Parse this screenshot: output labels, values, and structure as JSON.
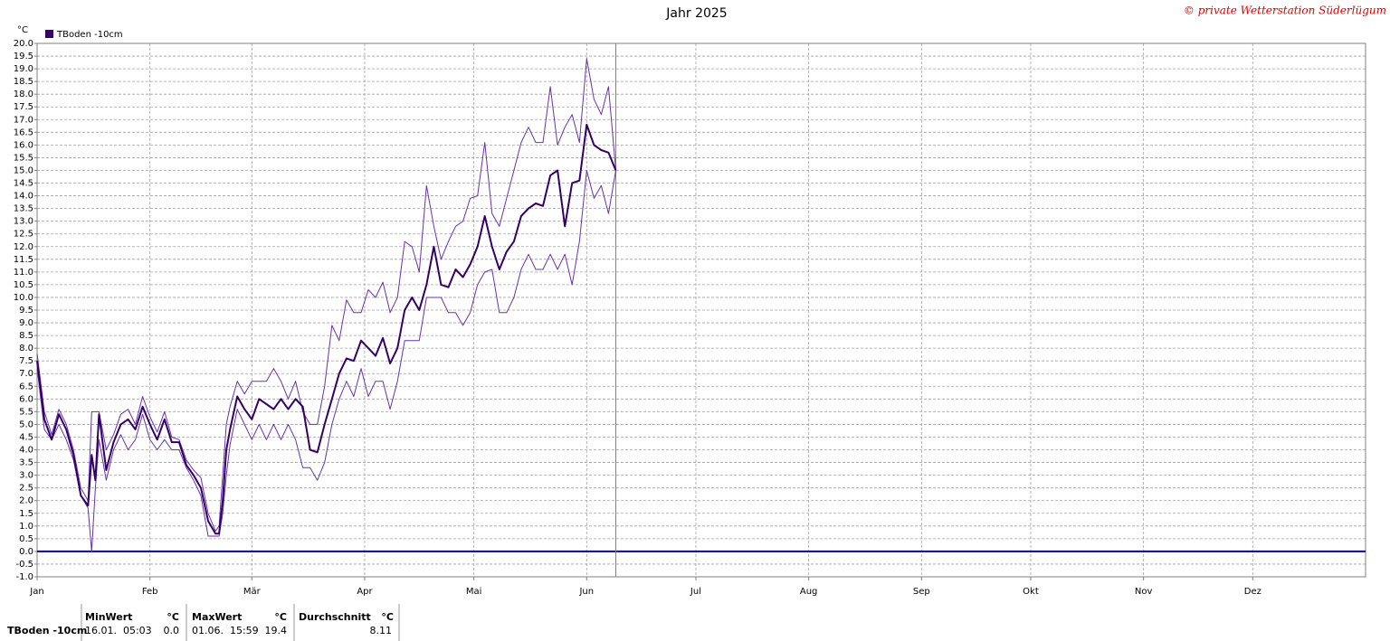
{
  "chart_data": {
    "type": "line",
    "title": "Jahr 2025",
    "credit": "© private Wetterstation Süderlügum",
    "y_unit": "°C",
    "legend": {
      "label": "TBoden -10cm",
      "color": "#330066"
    },
    "grid": true,
    "zero_line": {
      "value": 0,
      "color": "#0000cc"
    },
    "xlim": [
      0,
      365
    ],
    "xticks": [
      {
        "value": 0,
        "label": "Jan"
      },
      {
        "value": 31,
        "label": "Feb"
      },
      {
        "value": 59,
        "label": "Mär"
      },
      {
        "value": 90,
        "label": "Apr"
      },
      {
        "value": 120,
        "label": "Mai"
      },
      {
        "value": 151,
        "label": "Jun"
      },
      {
        "value": 181,
        "label": "Jul"
      },
      {
        "value": 212,
        "label": "Aug"
      },
      {
        "value": 243,
        "label": "Sep"
      },
      {
        "value": 273,
        "label": "Okt"
      },
      {
        "value": 304,
        "label": "Nov"
      },
      {
        "value": 334,
        "label": "Dez"
      }
    ],
    "ylim": [
      -1,
      20
    ],
    "yticks": [
      {
        "value": -1,
        "label": "-1.0"
      },
      {
        "value": -0.5,
        "label": "-0.5"
      },
      {
        "value": 0,
        "label": "0.0"
      },
      {
        "value": 0.5,
        "label": "0.5"
      },
      {
        "value": 1,
        "label": "1.0"
      },
      {
        "value": 1.5,
        "label": "1.5"
      },
      {
        "value": 2,
        "label": "2.0"
      },
      {
        "value": 2.5,
        "label": "2.5"
      },
      {
        "value": 3,
        "label": "3.0"
      },
      {
        "value": 3.5,
        "label": "3.5"
      },
      {
        "value": 4,
        "label": "4.0"
      },
      {
        "value": 4.5,
        "label": "4.5"
      },
      {
        "value": 5,
        "label": "5.0"
      },
      {
        "value": 5.5,
        "label": "5.5"
      },
      {
        "value": 6,
        "label": "6.0"
      },
      {
        "value": 6.5,
        "label": "6.5"
      },
      {
        "value": 7,
        "label": "7.0"
      },
      {
        "value": 7.5,
        "label": "7.5"
      },
      {
        "value": 8,
        "label": "8.0"
      },
      {
        "value": 8.5,
        "label": "8.5"
      },
      {
        "value": 9,
        "label": "9.0"
      },
      {
        "value": 9.5,
        "label": "9.5"
      },
      {
        "value": 10,
        "label": "10.0"
      },
      {
        "value": 10.5,
        "label": "10.5"
      },
      {
        "value": 11,
        "label": "11.0"
      },
      {
        "value": 11.5,
        "label": "11.5"
      },
      {
        "value": 12,
        "label": "12.0"
      },
      {
        "value": 12.5,
        "label": "12.5"
      },
      {
        "value": 13,
        "label": "13.0"
      },
      {
        "value": 13.5,
        "label": "13.5"
      },
      {
        "value": 14,
        "label": "14.0"
      },
      {
        "value": 14.5,
        "label": "14.5"
      },
      {
        "value": 15,
        "label": "15.0"
      },
      {
        "value": 15.5,
        "label": "15.5"
      },
      {
        "value": 16,
        "label": "16.0"
      },
      {
        "value": 16.5,
        "label": "16.5"
      },
      {
        "value": 17,
        "label": "17.0"
      },
      {
        "value": 17.5,
        "label": "17.5"
      },
      {
        "value": 18,
        "label": "18.0"
      },
      {
        "value": 18.5,
        "label": "18.5"
      },
      {
        "value": 19,
        "label": "19.0"
      },
      {
        "value": 19.5,
        "label": "19.5"
      },
      {
        "value": 20,
        "label": "20.0"
      }
    ],
    "x": [
      0,
      2,
      4,
      6,
      8,
      10,
      12,
      14,
      15,
      16,
      17,
      19,
      21,
      23,
      25,
      27,
      29,
      31,
      33,
      35,
      37,
      39,
      41,
      43,
      45,
      47,
      49,
      50,
      51,
      52,
      53,
      55,
      57,
      59,
      61,
      63,
      65,
      67,
      69,
      71,
      73,
      75,
      77,
      79,
      81,
      83,
      85,
      87,
      89,
      91,
      93,
      95,
      97,
      99,
      101,
      103,
      105,
      107,
      109,
      111,
      113,
      115,
      117,
      119,
      121,
      123,
      125,
      127,
      129,
      131,
      133,
      135,
      137,
      139,
      141,
      143,
      145,
      147,
      149,
      151,
      153,
      155,
      157,
      159
    ],
    "series": [
      {
        "color": "#6633aa",
        "bold": false,
        "values": [
          7.8,
          5.5,
          4.6,
          5.6,
          5.0,
          4.0,
          2.5,
          2.0,
          5.5,
          5.5,
          5.5,
          4.0,
          4.6,
          5.4,
          5.6,
          5.0,
          6.1,
          5.3,
          4.7,
          5.5,
          4.5,
          4.4,
          3.6,
          3.2,
          2.9,
          1.5,
          0.8,
          1.0,
          3.0,
          5.0,
          5.7,
          6.7,
          6.2,
          6.7,
          6.7,
          6.7,
          7.2,
          6.7,
          6.0,
          6.7,
          5.5,
          5.0,
          5.0,
          6.5,
          8.9,
          8.3,
          9.9,
          9.4,
          9.4,
          10.3,
          10.0,
          10.6,
          9.4,
          10.0,
          12.2,
          12.0,
          11.0,
          14.4,
          12.8,
          11.5,
          12.2,
          12.8,
          13.0,
          13.9,
          14.0,
          16.1,
          13.3,
          12.8,
          13.9,
          15.0,
          16.1,
          16.7,
          16.1,
          16.1,
          18.3,
          16.0,
          16.7,
          17.2,
          16.1,
          19.4,
          17.8,
          17.2,
          18.3,
          15.0
        ]
      },
      {
        "color": "#6633aa",
        "bold": false,
        "values": [
          7.2,
          4.8,
          4.4,
          5.0,
          4.4,
          3.6,
          2.2,
          1.7,
          0.0,
          2.5,
          4.4,
          2.8,
          4.0,
          4.6,
          4.0,
          4.4,
          5.4,
          4.4,
          4.0,
          4.4,
          4.0,
          4.0,
          3.3,
          2.8,
          2.2,
          0.6,
          0.6,
          0.6,
          1.5,
          3.0,
          4.2,
          5.6,
          5.0,
          4.4,
          5.0,
          4.4,
          5.0,
          4.4,
          5.0,
          4.4,
          3.3,
          3.3,
          2.8,
          3.5,
          5.0,
          6.0,
          6.7,
          6.1,
          7.2,
          6.1,
          6.7,
          6.7,
          5.6,
          6.7,
          8.3,
          8.3,
          8.3,
          10.0,
          10.0,
          10.0,
          9.4,
          9.4,
          8.9,
          9.4,
          10.5,
          11.0,
          11.1,
          9.4,
          9.4,
          10.0,
          11.1,
          11.7,
          11.1,
          11.1,
          11.7,
          11.1,
          11.7,
          10.5,
          12.2,
          15.0,
          13.9,
          14.4,
          13.3,
          15.0
        ]
      },
      {
        "color": "#330066",
        "bold": true,
        "values": [
          7.5,
          5.2,
          4.4,
          5.4,
          4.8,
          3.8,
          2.2,
          1.8,
          3.8,
          2.8,
          5.4,
          3.2,
          4.3,
          5.0,
          5.2,
          4.8,
          5.7,
          5.0,
          4.4,
          5.2,
          4.3,
          4.3,
          3.4,
          3.0,
          2.5,
          1.2,
          0.7,
          0.7,
          2.0,
          4.0,
          4.8,
          6.1,
          5.6,
          5.2,
          6.0,
          5.8,
          5.6,
          6.0,
          5.6,
          6.0,
          5.7,
          4.0,
          3.9,
          5.0,
          6.0,
          7.0,
          7.6,
          7.5,
          8.3,
          8.0,
          7.7,
          8.4,
          7.4,
          8.0,
          9.5,
          10.0,
          9.5,
          10.5,
          12.0,
          10.5,
          10.4,
          11.1,
          10.8,
          11.3,
          12.0,
          13.2,
          12.0,
          11.1,
          11.8,
          12.2,
          13.2,
          13.5,
          13.7,
          13.6,
          14.8,
          15.0,
          12.8,
          14.5,
          14.6,
          16.8,
          16.0,
          15.8,
          15.7,
          15.0
        ]
      }
    ]
  },
  "stats": {
    "row_label": "TBoden -10cm",
    "min_header": "MinWert",
    "min_unit": "°C",
    "min_time": "16.01.  05:03",
    "min_value": "0.0",
    "max_header": "MaxWert",
    "max_unit": "°C",
    "max_time": "01.06.  15:59",
    "max_value": "19.4",
    "avg_header": "Durchschnitt",
    "avg_unit": "°C",
    "avg_value": "8.11"
  }
}
